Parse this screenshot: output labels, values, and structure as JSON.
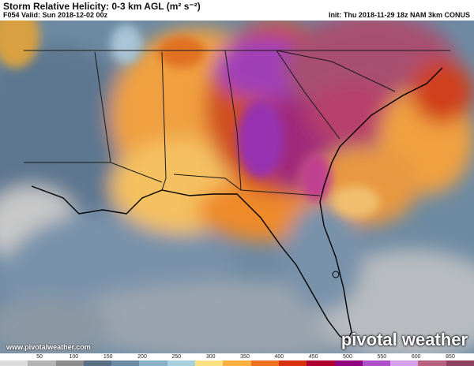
{
  "header": {
    "title": "Storm Relative Helicity: 0-3 km AGL (m² s⁻²)",
    "valid": "F054 Valid: Sun 2018-12-02 00z",
    "init": "Init: Thu 2018-11-29 18z NAM 3km CONUS"
  },
  "footer": {
    "url": "www.pivotalweather.com",
    "brand": "pivotal weather"
  },
  "colorbar": {
    "ticks": [
      "50",
      "100",
      "150",
      "200",
      "250",
      "300",
      "350",
      "400",
      "450",
      "500",
      "550",
      "600",
      "850"
    ],
    "colors": [
      "#dcdcdc",
      "#b4b4b4",
      "#8c8c8c",
      "#5a6e84",
      "#6a8aa6",
      "#8ab0c8",
      "#a8d0de",
      "#ffe080",
      "#fcb040",
      "#f07020",
      "#d83010",
      "#b00030",
      "#900080",
      "#b050c8",
      "#d8a0e8",
      "#b86080",
      "#904060"
    ]
  }
}
